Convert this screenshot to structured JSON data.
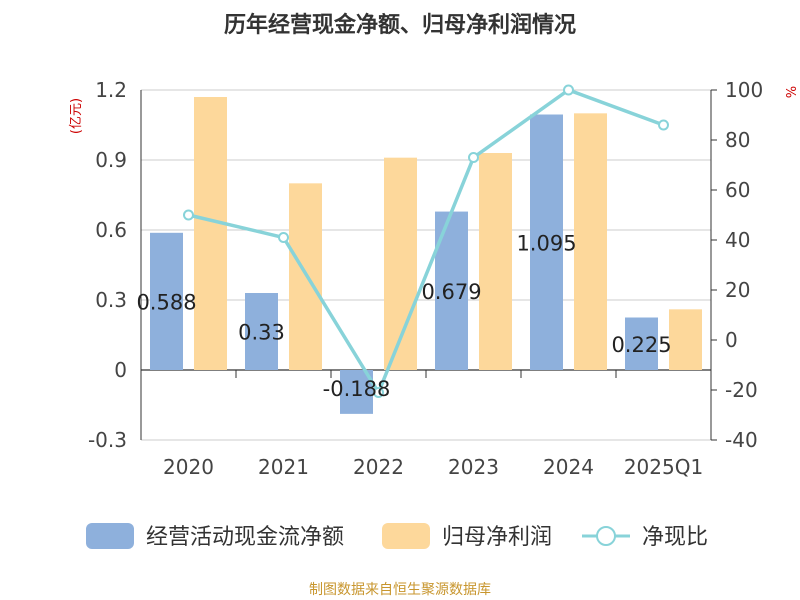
{
  "chart_data": {
    "type": "bar",
    "title": "历年经营现金净额、归母净利润情况",
    "categories": [
      "2020",
      "2021",
      "2022",
      "2023",
      "2024",
      "2025Q1"
    ],
    "y_left": {
      "unit_label": "(亿元)",
      "range": [
        -0.3,
        1.2
      ],
      "ticks": [
        "-0.3",
        "0",
        "0.3",
        "0.6",
        "0.9",
        "1.2"
      ]
    },
    "y_right": {
      "unit_label": "%",
      "range": [
        -40,
        100
      ],
      "ticks": [
        "-40",
        "-20",
        "0",
        "20",
        "40",
        "60",
        "80",
        "100"
      ]
    },
    "series": [
      {
        "name": "经营活动现金流净额",
        "kind": "bar",
        "axis": "left",
        "color": "#8eb0dc",
        "values": [
          0.588,
          0.33,
          -0.188,
          0.679,
          1.095,
          0.225
        ],
        "labels": [
          "0.588",
          "0.33",
          "-0.188",
          "0.679",
          "1.095",
          "0.225"
        ]
      },
      {
        "name": "归母净利润",
        "kind": "bar",
        "axis": "left",
        "color": "#fdd89b",
        "values": [
          1.17,
          0.8,
          0.91,
          0.93,
          1.1,
          0.26
        ]
      },
      {
        "name": "净现比",
        "kind": "line",
        "axis": "right",
        "color": "#88d3d9",
        "values": [
          50,
          41,
          -21,
          73,
          100,
          86
        ]
      }
    ],
    "grid": true,
    "legend_position": "bottom"
  },
  "source": "制图数据来自恒生聚源数据库"
}
